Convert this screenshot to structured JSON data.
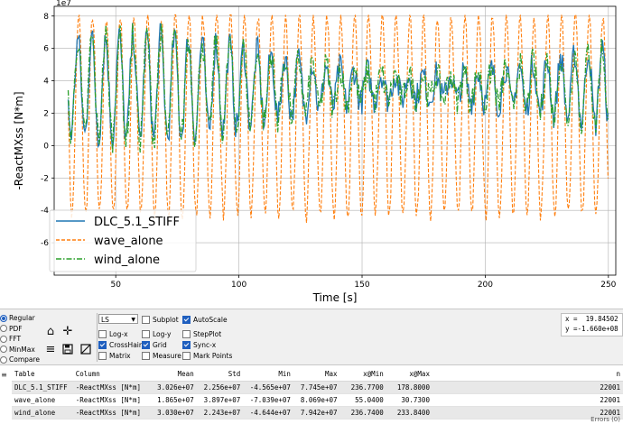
{
  "chart_data": {
    "type": "line",
    "xlabel": "Time [s]",
    "ylabel": "-ReactMXss [N*m]",
    "offset_label": "1e7",
    "xlim": [
      25,
      253
    ],
    "ylim": [
      -8.0,
      8.6
    ],
    "x_ticks": [
      50,
      100,
      150,
      200,
      250
    ],
    "y_ticks": [
      -6,
      -4,
      -2,
      0,
      2,
      4,
      6,
      8
    ],
    "grid": true,
    "legend": "lower-left",
    "series": [
      {
        "name": "DLC_5.1_STIFF",
        "color": "#1f77b4",
        "dash": "solid",
        "mean": 3.026,
        "std": 2.256,
        "min": -4.565,
        "max": 7.745
      },
      {
        "name": "wave_alone",
        "color": "#ff7f0e",
        "dash": "dashed",
        "mean": 1.865,
        "std": 3.897,
        "min": -7.039,
        "max": 8.069
      },
      {
        "name": "wind_alone",
        "color": "#2ca02c",
        "dash": "dashdot",
        "mean": 3.03,
        "std": 2.243,
        "min": -4.644,
        "max": 7.942
      }
    ],
    "x_start": 30.7,
    "x_end": 250.0
  },
  "controls": {
    "radio": [
      "Regular",
      "PDF",
      "FFT",
      "MinMax",
      "Compare"
    ],
    "radio_selected": 0,
    "select_value": "LS",
    "checks_col1": [
      {
        "label": "Log-x",
        "on": false
      },
      {
        "label": "CrossHair",
        "on": true
      },
      {
        "label": "Matrix",
        "on": false
      }
    ],
    "subplot": {
      "label": "Subplot",
      "on": false
    },
    "logy": {
      "label": "Log-y",
      "on": false
    },
    "grid": {
      "label": "Grid",
      "on": true
    },
    "measure": {
      "label": "Measure",
      "on": false
    },
    "autoscale": {
      "label": "AutoScale",
      "on": true
    },
    "stepplot": {
      "label": "StepPlot",
      "on": false
    },
    "syncx": {
      "label": "Sync-x",
      "on": true
    },
    "markpoints": {
      "label": "Mark Points",
      "on": false
    },
    "icons": [
      "home-icon",
      "move-icon",
      "sliders-icon",
      "save-icon",
      "zoom-box-icon"
    ]
  },
  "readout": {
    "x": "x =  19.84502",
    "y": "y =-1.660e+08"
  },
  "table": {
    "headers": [
      "Table",
      "Column",
      "Mean",
      "Std",
      "Min",
      "Max",
      "x@Min",
      "x@Max",
      "n"
    ],
    "rows": [
      [
        "DLC_5.1_STIFF",
        "-ReactMXss [N*m]",
        "3.026e+07",
        "2.256e+07",
        "-4.565e+07",
        "7.745e+07",
        "236.7700",
        "178.8000",
        "22001"
      ],
      [
        "wave_alone",
        "-ReactMXss [N*m]",
        "1.865e+07",
        "3.897e+07",
        "-7.039e+07",
        "8.069e+07",
        "55.0400",
        "30.7300",
        "22001"
      ],
      [
        "wind_alone",
        "-ReactMXss [N*m]",
        "3.030e+07",
        "2.243e+07",
        "-4.644e+07",
        "7.942e+07",
        "236.7400",
        "233.8400",
        "22001"
      ]
    ],
    "side_button": "≡",
    "footer": "Errors (0)"
  }
}
